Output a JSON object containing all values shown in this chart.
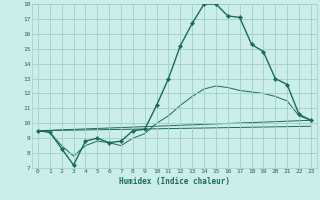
{
  "title": "",
  "xlabel": "Humidex (Indice chaleur)",
  "xlim": [
    -0.5,
    23.5
  ],
  "ylim": [
    7,
    18
  ],
  "yticks": [
    7,
    8,
    9,
    10,
    11,
    12,
    13,
    14,
    15,
    16,
    17,
    18
  ],
  "xticks": [
    0,
    1,
    2,
    3,
    4,
    5,
    6,
    7,
    8,
    9,
    10,
    11,
    12,
    13,
    14,
    15,
    16,
    17,
    18,
    19,
    20,
    21,
    22,
    23
  ],
  "line_color": "#1a6b5a",
  "bg_color": "#cceee8",
  "grid_color": "#9ecece",
  "main_line": {
    "x": [
      0,
      1,
      2,
      3,
      4,
      5,
      6,
      7,
      8,
      9,
      10,
      11,
      12,
      13,
      14,
      15,
      16,
      17,
      18,
      19,
      20,
      21,
      22,
      23
    ],
    "y": [
      9.5,
      9.4,
      8.3,
      7.2,
      8.8,
      9.0,
      8.7,
      8.8,
      9.5,
      9.6,
      11.2,
      13.0,
      15.2,
      16.7,
      18.0,
      18.0,
      17.2,
      17.1,
      15.3,
      14.8,
      13.0,
      12.6,
      10.6,
      10.2
    ]
  },
  "extra_lines": [
    {
      "x": [
        0,
        1,
        2,
        3,
        4,
        5,
        6,
        7,
        8,
        9,
        10,
        11,
        12,
        13,
        14,
        15,
        16,
        17,
        18,
        19,
        20,
        21,
        22,
        23
      ],
      "y": [
        9.5,
        9.4,
        8.5,
        7.8,
        8.5,
        8.8,
        8.7,
        8.5,
        9.0,
        9.3,
        10.0,
        10.5,
        11.2,
        11.8,
        12.3,
        12.5,
        12.4,
        12.2,
        12.1,
        12.0,
        11.8,
        11.5,
        10.5,
        10.2
      ]
    },
    {
      "x": [
        0,
        23
      ],
      "y": [
        9.5,
        10.2
      ]
    },
    {
      "x": [
        0,
        23
      ],
      "y": [
        9.5,
        9.8
      ]
    }
  ]
}
